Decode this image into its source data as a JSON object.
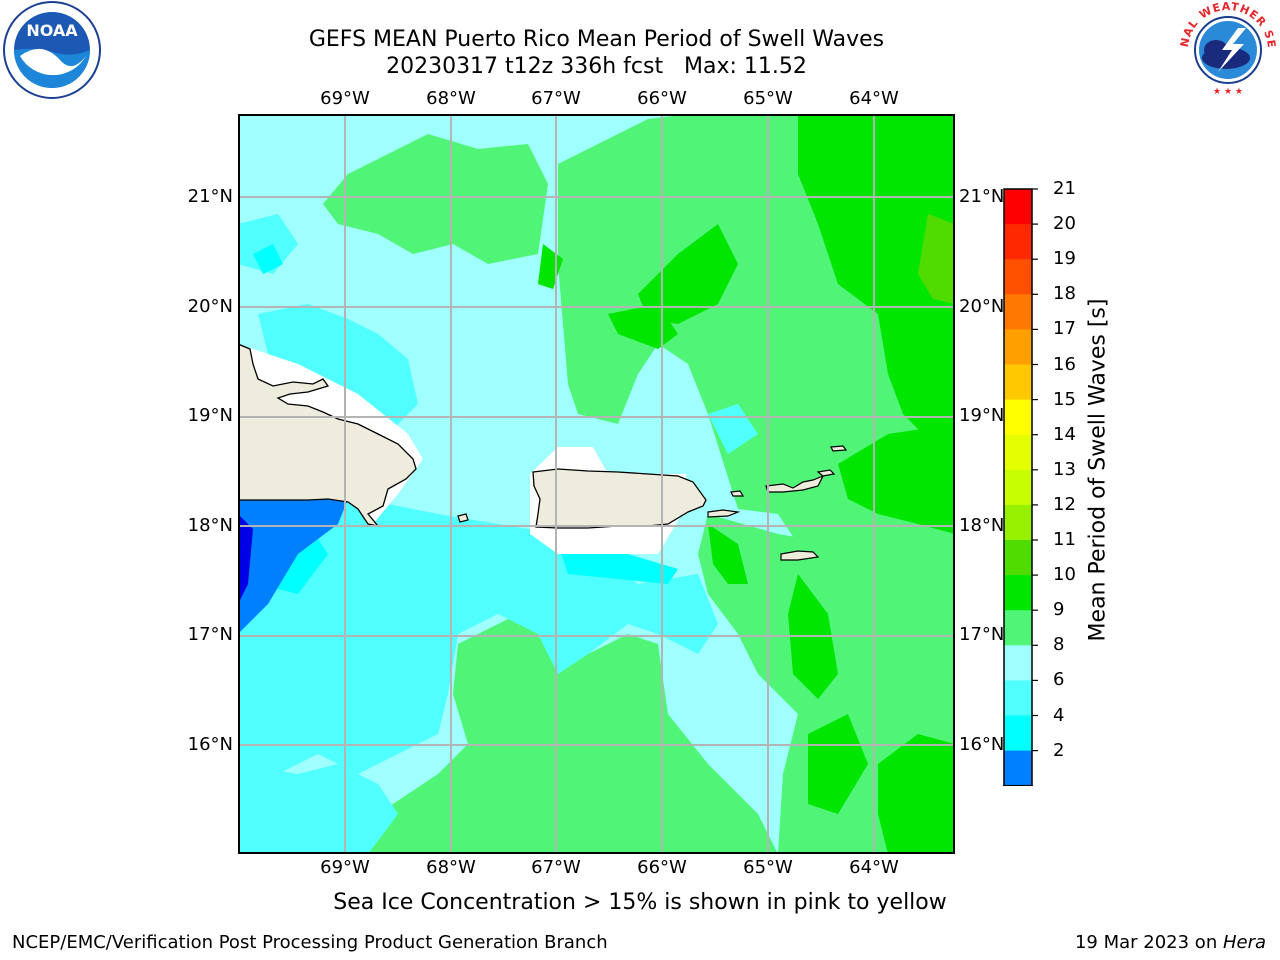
{
  "title": {
    "line1": "GEFS MEAN Puerto Rico Mean Period of Swell Waves",
    "line2": "20230317 t12z 336h fcst   Max: 11.52"
  },
  "map": {
    "lon_labels": [
      "69°W",
      "68°W",
      "67°W",
      "66°W",
      "65°W",
      "64°W"
    ],
    "lat_labels": [
      "21°N",
      "20°N",
      "19°N",
      "18°N",
      "17°N",
      "16°N"
    ],
    "land_color": "#eeecdc",
    "grid_color": "#b4b4b4"
  },
  "colorbar": {
    "label": "Mean Period of Swell Waves [s]",
    "ticks": [
      "21",
      "20",
      "19",
      "18",
      "17",
      "16",
      "15",
      "14",
      "13",
      "12",
      "11",
      "10",
      "9",
      "8",
      "6",
      "4",
      "2"
    ],
    "colors_top_to_bottom": [
      "#ff0000",
      "#ff2800",
      "#ff5000",
      "#ff7800",
      "#ffa000",
      "#ffc800",
      "#ffff00",
      "#e6ff00",
      "#c8ff00",
      "#96f000",
      "#50dc00",
      "#00e600",
      "#50f578",
      "#a0ffff",
      "#50ffff",
      "#00ffff",
      "#0080ff",
      "#0000e6"
    ]
  },
  "note": "Sea Ice Concentration > 15% is shown in pink to yellow",
  "footer": {
    "left": "NCEP/EMC/Verification Post Processing Product Generation Branch",
    "right_date": "19 Mar 2023 on ",
    "right_host": "Hera"
  },
  "logos": {
    "left": "NOAA",
    "right": "NATIONAL WEATHER SERVICE"
  }
}
